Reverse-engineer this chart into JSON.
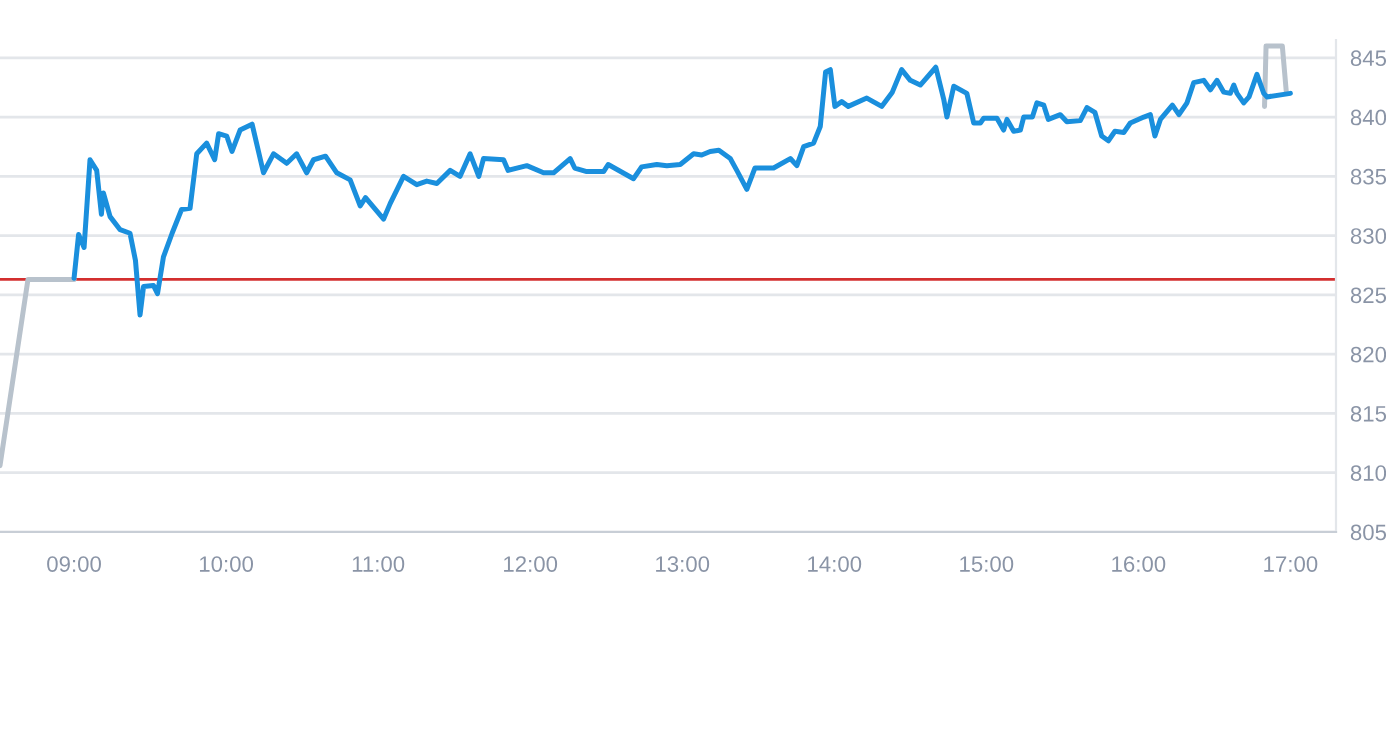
{
  "chart_data": {
    "type": "line",
    "xlim": [
      8.513,
      17.3
    ],
    "xticks": [
      {
        "value": 9,
        "label": "09:00"
      },
      {
        "value": 10,
        "label": "10:00"
      },
      {
        "value": 11,
        "label": "11:00"
      },
      {
        "value": 12,
        "label": "12:00"
      },
      {
        "value": 13,
        "label": "13:00"
      },
      {
        "value": 14,
        "label": "14:00"
      },
      {
        "value": 15,
        "label": "15:00"
      },
      {
        "value": 16,
        "label": "16:00"
      },
      {
        "value": 17,
        "label": "17:00"
      }
    ],
    "ylim": [
      805,
      846.5
    ],
    "yticks": [
      805,
      810,
      815,
      820,
      825,
      830,
      835,
      840,
      845
    ],
    "grid": "y",
    "line_style": "solid",
    "ref_lines": [
      {
        "axis": "y",
        "value": 826.3,
        "label": null,
        "color": "#d32f2f"
      }
    ],
    "series": [
      {
        "color": "#b8c2cc",
        "x": [
          8.513,
          8.697,
          9.0
        ],
        "values": [
          810.6,
          826.3,
          826.3
        ]
      },
      {
        "color": "#b8c2cc",
        "x": [
          16.83,
          16.84,
          16.947,
          16.974
        ],
        "values": [
          840.9,
          846.0,
          846.0,
          842.0
        ]
      },
      {
        "color": "#1a8fdd",
        "x": [
          9.0,
          9.03,
          9.066,
          9.105,
          9.149,
          9.18,
          9.193,
          9.237,
          9.303,
          9.368,
          9.404,
          9.434,
          9.457,
          9.522,
          9.549,
          9.588,
          9.645,
          9.707,
          9.763,
          9.807,
          9.872,
          9.925,
          9.951,
          10.004,
          10.039,
          10.092,
          10.171,
          10.246,
          10.312,
          10.399,
          10.464,
          10.53,
          10.575,
          10.654,
          10.728,
          10.816,
          10.882,
          10.917,
          11.036,
          11.079,
          11.167,
          11.254,
          11.32,
          11.386,
          11.474,
          11.539,
          11.605,
          11.662,
          11.693,
          11.825,
          11.855,
          11.978,
          12.088,
          12.154,
          12.263,
          12.293,
          12.372,
          12.483,
          12.513,
          12.68,
          12.733,
          12.833,
          12.899,
          12.987,
          13.075,
          13.128,
          13.184,
          13.241,
          13.316,
          13.359,
          13.425,
          13.478,
          13.601,
          13.711,
          13.754,
          13.799,
          13.864,
          13.908,
          13.943,
          13.974,
          14.004,
          14.049,
          14.092,
          14.214,
          14.312,
          14.382,
          14.443,
          14.5,
          14.566,
          14.668,
          14.72,
          14.741,
          14.786,
          14.872,
          14.917,
          14.961,
          14.983,
          15.07,
          15.114,
          15.136,
          15.18,
          15.224,
          15.246,
          15.303,
          15.333,
          15.378,
          15.408,
          15.487,
          15.53,
          15.618,
          15.662,
          15.714,
          15.759,
          15.803,
          15.846,
          15.904,
          15.947,
          16.036,
          16.079,
          16.109,
          16.145,
          16.224,
          16.267,
          16.32,
          16.364,
          16.43,
          16.474,
          16.517,
          16.562,
          16.605,
          16.628,
          16.649,
          16.693,
          16.728,
          16.78,
          16.825,
          16.846,
          17.0
        ],
        "values": [
          826.4,
          830.1,
          829.0,
          836.4,
          835.5,
          831.8,
          833.6,
          831.6,
          830.5,
          830.2,
          827.9,
          823.3,
          825.7,
          825.8,
          825.1,
          828.2,
          830.2,
          832.2,
          832.3,
          836.9,
          837.8,
          836.4,
          838.6,
          838.4,
          837.1,
          838.9,
          839.4,
          835.3,
          836.9,
          836.1,
          836.9,
          835.3,
          836.4,
          836.7,
          835.3,
          834.7,
          832.5,
          833.2,
          831.4,
          832.7,
          835.0,
          834.3,
          834.6,
          834.4,
          835.5,
          835.0,
          836.9,
          835.0,
          836.5,
          836.4,
          835.5,
          835.9,
          835.3,
          835.3,
          836.5,
          835.7,
          835.4,
          835.4,
          836.0,
          834.8,
          835.8,
          836.0,
          835.9,
          836.0,
          836.9,
          836.8,
          837.1,
          837.2,
          836.5,
          835.5,
          833.9,
          835.7,
          835.7,
          836.5,
          835.9,
          837.5,
          837.8,
          839.2,
          843.8,
          844.0,
          840.9,
          841.3,
          840.9,
          841.6,
          840.9,
          842.1,
          844.0,
          843.1,
          842.7,
          844.2,
          841.5,
          840.0,
          842.6,
          842.0,
          839.5,
          839.5,
          839.9,
          839.9,
          838.9,
          839.8,
          838.8,
          838.9,
          840.0,
          840.0,
          841.2,
          841.0,
          839.8,
          840.2,
          839.6,
          839.7,
          840.8,
          840.4,
          838.4,
          838.0,
          838.8,
          838.7,
          839.5,
          840.0,
          840.2,
          838.4,
          839.8,
          841.0,
          840.2,
          841.2,
          842.9,
          843.1,
          842.3,
          843.1,
          842.1,
          842.0,
          842.7,
          842.0,
          841.2,
          841.7,
          843.6,
          842.0,
          841.7,
          842.0
        ]
      }
    ]
  }
}
